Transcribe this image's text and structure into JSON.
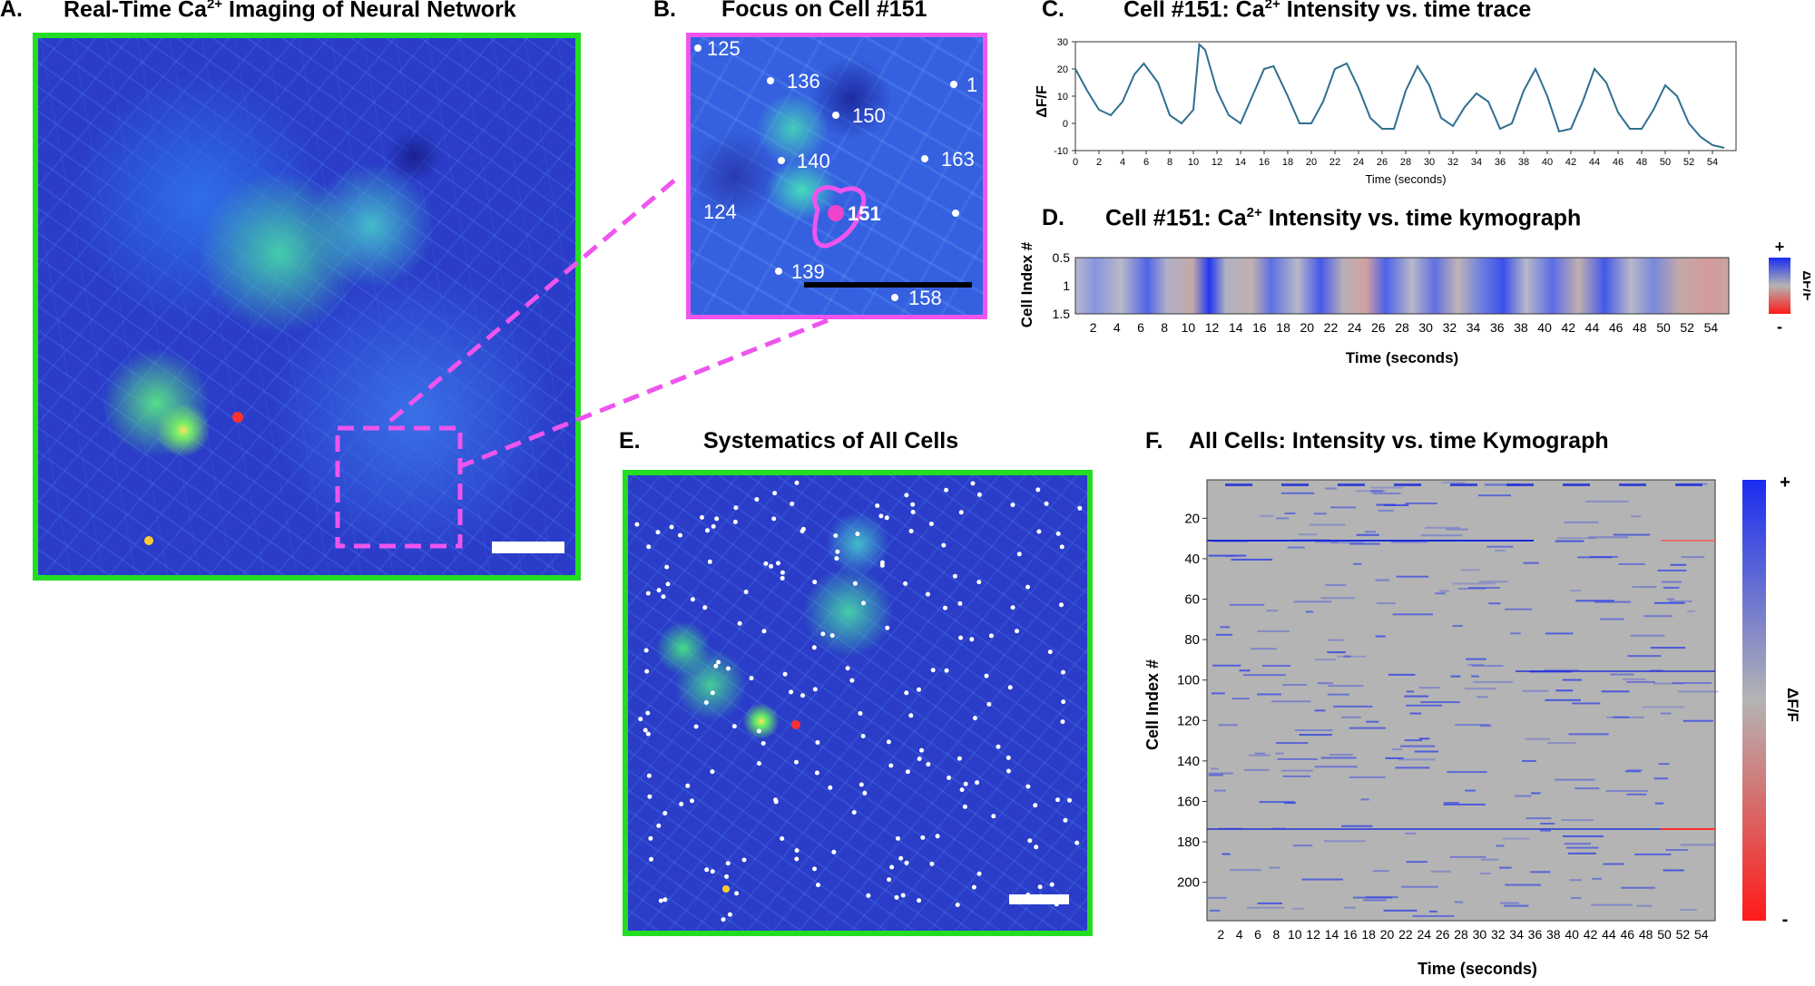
{
  "panels": {
    "A": {
      "letter": "A.",
      "title_pre": "Real-Time Ca",
      "title_sup": "2+",
      "title_post": " Imaging of Neural Network"
    },
    "B": {
      "letter": "B.",
      "title": "Focus on Cell #151",
      "labels": [
        "125",
        "136",
        "150",
        "1",
        "140",
        "163",
        "124",
        "151",
        "139",
        "158"
      ]
    },
    "C": {
      "letter": "C.",
      "title_pre": "Cell #151: Ca",
      "title_sup": "2+",
      "title_post": " Intensity vs. time trace"
    },
    "D": {
      "letter": "D.",
      "title_pre": "Cell #151: Ca",
      "title_sup": "2+",
      "title_post": " Intensity vs. time kymograph"
    },
    "E": {
      "letter": "E.",
      "title": "Systematics of All Cells"
    },
    "F": {
      "letter": "F.",
      "title": "All Cells: Intensity vs. time Kymograph"
    }
  },
  "colors": {
    "frame_green": "#22dd22",
    "frame_magenta": "#ee55ee",
    "kymo_blue": "#1a2cf0",
    "kymo_red": "#ff1a1a",
    "kymo_gray": "#b4b4b4"
  },
  "chart_data": [
    {
      "type": "line",
      "panel": "C",
      "ylabel": "ΔF/F",
      "xlabel": "Time (seconds)",
      "xlim": [
        0,
        56
      ],
      "ylim": [
        -10,
        30
      ],
      "xticks": [
        "0",
        "2",
        "4",
        "6",
        "8",
        "10",
        "12",
        "14",
        "16",
        "18",
        "20",
        "22",
        "24",
        "26",
        "28",
        "30",
        "32",
        "34",
        "36",
        "38",
        "40",
        "42",
        "44",
        "46",
        "48",
        "50",
        "52",
        "54"
      ],
      "yticks": [
        "30",
        "20",
        "10",
        "0",
        "-10"
      ],
      "series": [
        {
          "x": [
            0,
            1,
            2,
            3,
            4,
            5,
            5.8,
            7,
            8,
            9,
            10,
            10.5,
            11,
            12,
            13,
            14,
            15,
            16,
            16.8,
            18,
            19,
            20,
            21,
            22,
            23,
            24,
            25,
            26,
            27,
            28,
            29,
            30,
            31,
            32,
            33,
            34,
            35,
            36,
            37,
            38,
            39,
            40,
            41,
            42,
            43,
            44,
            45,
            46,
            47,
            48,
            49,
            50,
            51,
            52,
            53,
            54,
            55
          ],
          "y": [
            20,
            12,
            5,
            3,
            8,
            18,
            22,
            15,
            3,
            0,
            5,
            29,
            27,
            12,
            3,
            0,
            10,
            20,
            21,
            10,
            0,
            0,
            8,
            20,
            22,
            13,
            2,
            -2,
            -2,
            12,
            21,
            14,
            2,
            -1,
            6,
            11,
            8,
            -2,
            0,
            12,
            20,
            10,
            -3,
            -2,
            8,
            20,
            15,
            4,
            -2,
            -2,
            5,
            14,
            10,
            0,
            -5,
            -8,
            -9
          ]
        }
      ]
    },
    {
      "type": "heatmap",
      "panel": "D",
      "ylabel": "Cell Index #",
      "xlabel": "Time (seconds)",
      "yticks": [
        "0.5",
        "1",
        "1.5"
      ],
      "xticks": [
        "2",
        "4",
        "6",
        "8",
        "10",
        "12",
        "14",
        "16",
        "18",
        "20",
        "22",
        "24",
        "26",
        "28",
        "30",
        "32",
        "34",
        "36",
        "38",
        "40",
        "42",
        "44",
        "46",
        "48",
        "50",
        "52",
        "54"
      ],
      "colorbar": {
        "label": "ΔF/F",
        "top": "+",
        "bottom": "-"
      }
    },
    {
      "type": "heatmap",
      "panel": "F",
      "ylabel": "Cell Index #",
      "xlabel": "Time (seconds)",
      "yticks": [
        "20",
        "40",
        "60",
        "80",
        "100",
        "120",
        "140",
        "160",
        "180",
        "200"
      ],
      "xticks": [
        "2",
        "4",
        "6",
        "8",
        "10",
        "12",
        "14",
        "16",
        "18",
        "20",
        "22",
        "24",
        "26",
        "28",
        "30",
        "32",
        "34",
        "36",
        "38",
        "40",
        "42",
        "44",
        "46",
        "48",
        "50",
        "52",
        "54"
      ],
      "colorbar": {
        "label": "ΔF/F",
        "top": "+",
        "bottom": "-"
      }
    }
  ]
}
